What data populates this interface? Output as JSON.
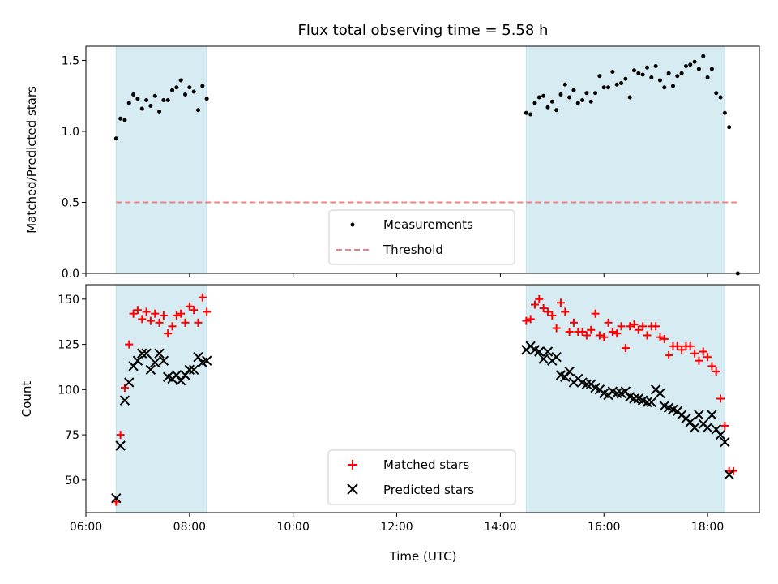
{
  "chart_data": [
    {
      "type": "scatter",
      "title": "Flux total observing time = 5.58 h",
      "xlabel": "",
      "ylabel": "Matched/Predicted stars",
      "xlim_hours": [
        6.0,
        19.0
      ],
      "ylim": [
        0,
        1.6
      ],
      "yticks": [
        0.0,
        0.5,
        1.0,
        1.5
      ],
      "ytick_labels": [
        "0.0",
        "0.5",
        "1.0",
        "1.5"
      ],
      "shaded_ranges": [
        [
          "06:35",
          "08:20"
        ],
        [
          "14:30",
          "18:20"
        ]
      ],
      "shade_color": "#add8e6",
      "legend": {
        "placement": "lower center"
      },
      "series": [
        {
          "name": "Measurements",
          "marker": "dot",
          "color": "#000000",
          "points": [
            [
              "06:35",
              0.95
            ],
            [
              "06:40",
              1.09
            ],
            [
              "06:45",
              1.08
            ],
            [
              "06:50",
              1.2
            ],
            [
              "06:55",
              1.26
            ],
            [
              "07:00",
              1.23
            ],
            [
              "07:05",
              1.16
            ],
            [
              "07:10",
              1.22
            ],
            [
              "07:15",
              1.18
            ],
            [
              "07:20",
              1.25
            ],
            [
              "07:25",
              1.14
            ],
            [
              "07:30",
              1.22
            ],
            [
              "07:35",
              1.22
            ],
            [
              "07:40",
              1.29
            ],
            [
              "07:45",
              1.31
            ],
            [
              "07:50",
              1.36
            ],
            [
              "07:55",
              1.26
            ],
            [
              "08:00",
              1.31
            ],
            [
              "08:05",
              1.28
            ],
            [
              "08:10",
              1.15
            ],
            [
              "08:15",
              1.32
            ],
            [
              "08:20",
              1.23
            ],
            [
              "14:30",
              1.13
            ],
            [
              "14:35",
              1.12
            ],
            [
              "14:40",
              1.2
            ],
            [
              "14:45",
              1.24
            ],
            [
              "14:50",
              1.25
            ],
            [
              "14:55",
              1.17
            ],
            [
              "15:00",
              1.21
            ],
            [
              "15:05",
              1.15
            ],
            [
              "15:10",
              1.26
            ],
            [
              "15:15",
              1.33
            ],
            [
              "15:20",
              1.24
            ],
            [
              "15:25",
              1.29
            ],
            [
              "15:30",
              1.2
            ],
            [
              "15:35",
              1.22
            ],
            [
              "15:40",
              1.27
            ],
            [
              "15:45",
              1.21
            ],
            [
              "15:50",
              1.27
            ],
            [
              "15:55",
              1.39
            ],
            [
              "16:00",
              1.31
            ],
            [
              "16:05",
              1.31
            ],
            [
              "16:10",
              1.42
            ],
            [
              "16:15",
              1.33
            ],
            [
              "16:20",
              1.34
            ],
            [
              "16:25",
              1.37
            ],
            [
              "16:30",
              1.24
            ],
            [
              "16:35",
              1.43
            ],
            [
              "16:40",
              1.41
            ],
            [
              "16:45",
              1.4
            ],
            [
              "16:50",
              1.45
            ],
            [
              "16:55",
              1.38
            ],
            [
              "17:00",
              1.46
            ],
            [
              "17:05",
              1.36
            ],
            [
              "17:10",
              1.31
            ],
            [
              "17:15",
              1.41
            ],
            [
              "17:20",
              1.32
            ],
            [
              "17:25",
              1.39
            ],
            [
              "17:30",
              1.41
            ],
            [
              "17:35",
              1.46
            ],
            [
              "17:40",
              1.47
            ],
            [
              "17:45",
              1.49
            ],
            [
              "17:50",
              1.44
            ],
            [
              "17:55",
              1.53
            ],
            [
              "18:00",
              1.38
            ],
            [
              "18:05",
              1.44
            ],
            [
              "18:10",
              1.27
            ],
            [
              "18:15",
              1.24
            ],
            [
              "18:20",
              1.13
            ],
            [
              "18:25",
              1.03
            ],
            [
              "18:35",
              0.0
            ]
          ]
        },
        {
          "name": "Threshold",
          "style": "dashed",
          "color": "#f08080",
          "points": [
            [
              "06:35",
              0.5
            ],
            [
              "18:35",
              0.5
            ]
          ]
        }
      ]
    },
    {
      "type": "scatter",
      "title": "",
      "xlabel": "Time (UTC)",
      "ylabel": "Count",
      "xlim_hours": [
        6.0,
        19.0
      ],
      "ylim": [
        32,
        158
      ],
      "yticks": [
        50,
        75,
        100,
        125,
        150
      ],
      "ytick_labels": [
        "50",
        "75",
        "100",
        "125",
        "150"
      ],
      "xticks": [
        "06:00",
        "08:00",
        "10:00",
        "12:00",
        "14:00",
        "16:00",
        "18:00"
      ],
      "shaded_ranges": [
        [
          "06:35",
          "08:20"
        ],
        [
          "14:30",
          "18:20"
        ]
      ],
      "shade_color": "#add8e6",
      "legend": {
        "placement": "lower center"
      },
      "series": [
        {
          "name": "Matched stars",
          "marker": "plus",
          "color": "#ff0000",
          "points": [
            [
              "06:35",
              38
            ],
            [
              "06:40",
              75
            ],
            [
              "06:45",
              101
            ],
            [
              "06:50",
              125
            ],
            [
              "06:55",
              142
            ],
            [
              "07:00",
              144
            ],
            [
              "07:05",
              139
            ],
            [
              "07:10",
              143
            ],
            [
              "07:15",
              138
            ],
            [
              "07:20",
              142
            ],
            [
              "07:25",
              137
            ],
            [
              "07:30",
              141
            ],
            [
              "07:35",
              131
            ],
            [
              "07:40",
              135
            ],
            [
              "07:45",
              141
            ],
            [
              "07:50",
              142
            ],
            [
              "07:55",
              137
            ],
            [
              "08:00",
              146
            ],
            [
              "08:05",
              144
            ],
            [
              "08:10",
              137
            ],
            [
              "08:15",
              151
            ],
            [
              "08:20",
              143
            ],
            [
              "14:30",
              138
            ],
            [
              "14:35",
              139
            ],
            [
              "14:40",
              147
            ],
            [
              "14:45",
              150
            ],
            [
              "14:50",
              145
            ],
            [
              "14:55",
              143
            ],
            [
              "15:00",
              141
            ],
            [
              "15:05",
              134
            ],
            [
              "15:10",
              148
            ],
            [
              "15:15",
              143
            ],
            [
              "15:20",
              132
            ],
            [
              "15:25",
              137
            ],
            [
              "15:30",
              132
            ],
            [
              "15:35",
              132
            ],
            [
              "15:40",
              130
            ],
            [
              "15:45",
              133
            ],
            [
              "15:50",
              142
            ],
            [
              "15:55",
              130
            ],
            [
              "16:00",
              129
            ],
            [
              "16:05",
              137
            ],
            [
              "16:10",
              132
            ],
            [
              "16:15",
              131
            ],
            [
              "16:20",
              135
            ],
            [
              "16:25",
              123
            ],
            [
              "16:30",
              135
            ],
            [
              "16:35",
              136
            ],
            [
              "16:40",
              133
            ],
            [
              "16:45",
              135
            ],
            [
              "16:50",
              130
            ],
            [
              "16:55",
              135
            ],
            [
              "17:00",
              135
            ],
            [
              "17:05",
              129
            ],
            [
              "17:10",
              128
            ],
            [
              "17:15",
              119
            ],
            [
              "17:20",
              124
            ],
            [
              "17:25",
              124
            ],
            [
              "17:30",
              122
            ],
            [
              "17:35",
              124
            ],
            [
              "17:40",
              124
            ],
            [
              "17:45",
              120
            ],
            [
              "17:50",
              116
            ],
            [
              "17:55",
              121
            ],
            [
              "18:00",
              118
            ],
            [
              "18:05",
              113
            ],
            [
              "18:10",
              110
            ],
            [
              "18:15",
              95
            ],
            [
              "18:20",
              80
            ],
            [
              "18:25",
              55
            ],
            [
              "18:30",
              55
            ]
          ]
        },
        {
          "name": "Predicted stars",
          "marker": "x",
          "color": "#000000",
          "points": [
            [
              "06:35",
              40
            ],
            [
              "06:40",
              69
            ],
            [
              "06:45",
              94
            ],
            [
              "06:50",
              104
            ],
            [
              "06:55",
              113
            ],
            [
              "07:00",
              116
            ],
            [
              "07:05",
              120
            ],
            [
              "07:10",
              120
            ],
            [
              "07:15",
              111
            ],
            [
              "07:20",
              115
            ],
            [
              "07:25",
              120
            ],
            [
              "07:30",
              116
            ],
            [
              "07:35",
              107
            ],
            [
              "07:40",
              106
            ],
            [
              "07:45",
              108
            ],
            [
              "07:50",
              105
            ],
            [
              "07:55",
              108
            ],
            [
              "08:00",
              111
            ],
            [
              "08:05",
              111
            ],
            [
              "08:10",
              118
            ],
            [
              "08:15",
              115
            ],
            [
              "08:20",
              116
            ],
            [
              "14:30",
              122
            ],
            [
              "14:35",
              124
            ],
            [
              "14:40",
              122
            ],
            [
              "14:45",
              121
            ],
            [
              "14:50",
              117
            ],
            [
              "14:55",
              121
            ],
            [
              "15:00",
              116
            ],
            [
              "15:05",
              118
            ],
            [
              "15:10",
              108
            ],
            [
              "15:15",
              107
            ],
            [
              "15:20",
              110
            ],
            [
              "15:25",
              104
            ],
            [
              "15:30",
              106
            ],
            [
              "15:35",
              104
            ],
            [
              "15:40",
              103
            ],
            [
              "15:45",
              103
            ],
            [
              "15:50",
              101
            ],
            [
              "15:55",
              100
            ],
            [
              "16:00",
              98
            ],
            [
              "16:05",
              97
            ],
            [
              "16:10",
              99
            ],
            [
              "16:15",
              98
            ],
            [
              "16:20",
              98
            ],
            [
              "16:25",
              99
            ],
            [
              "16:30",
              96
            ],
            [
              "16:35",
              95
            ],
            [
              "16:40",
              95
            ],
            [
              "16:45",
              94
            ],
            [
              "16:50",
              93
            ],
            [
              "16:55",
              93
            ],
            [
              "17:00",
              100
            ],
            [
              "17:05",
              98
            ],
            [
              "17:10",
              91
            ],
            [
              "17:15",
              90
            ],
            [
              "17:20",
              89
            ],
            [
              "17:25",
              88
            ],
            [
              "17:30",
              86
            ],
            [
              "17:35",
              84
            ],
            [
              "17:40",
              82
            ],
            [
              "17:45",
              79
            ],
            [
              "17:50",
              86
            ],
            [
              "17:55",
              81
            ],
            [
              "18:00",
              79
            ],
            [
              "18:05",
              86
            ],
            [
              "18:10",
              78
            ],
            [
              "18:15",
              75
            ],
            [
              "18:20",
              71
            ],
            [
              "18:25",
              53
            ]
          ]
        }
      ]
    }
  ]
}
